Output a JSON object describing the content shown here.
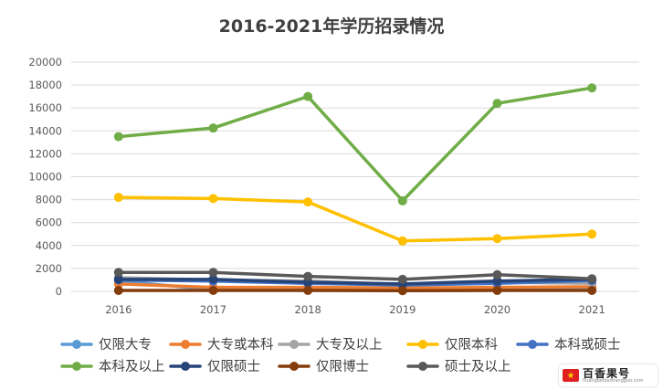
{
  "chart_data": {
    "type": "line",
    "title": "2016-2021年学历招录情况",
    "categories": [
      "2016",
      "2017",
      "2018",
      "2019",
      "2020",
      "2021"
    ],
    "ylim": [
      0,
      20000
    ],
    "yticks": [
      0,
      2000,
      4000,
      6000,
      8000,
      10000,
      12000,
      14000,
      16000,
      18000,
      20000
    ],
    "grid": true,
    "legend_position": "bottom",
    "series": [
      {
        "name": "仅限大专",
        "color": "#5b9bd5",
        "values": [
          900,
          150,
          250,
          200,
          250,
          300
        ]
      },
      {
        "name": "大专或本科",
        "color": "#ed7d31",
        "values": [
          650,
          350,
          350,
          300,
          350,
          400
        ]
      },
      {
        "name": "大专及以上",
        "color": "#a5a5a5",
        "values": [
          1200,
          1000,
          900,
          600,
          800,
          700
        ]
      },
      {
        "name": "仅限本科",
        "color": "#ffc000",
        "values": [
          8200,
          8100,
          7800,
          4400,
          4600,
          5000
        ]
      },
      {
        "name": "本科或硕士",
        "color": "#4472c4",
        "values": [
          1000,
          900,
          700,
          550,
          700,
          950
        ]
      },
      {
        "name": "本科及以上",
        "color": "#70ad47",
        "values": [
          13500,
          14250,
          17000,
          7900,
          16400,
          17750
        ]
      },
      {
        "name": "仅限硕士",
        "color": "#264478",
        "values": [
          1050,
          1050,
          800,
          650,
          900,
          1050
        ]
      },
      {
        "name": "仅限博士",
        "color": "#843c0c",
        "values": [
          80,
          80,
          80,
          60,
          80,
          80
        ]
      },
      {
        "name": "硕士及以上",
        "color": "#595959",
        "values": [
          1650,
          1650,
          1300,
          1050,
          1450,
          1100
        ]
      }
    ]
  },
  "watermark": {
    "name": "百香果号",
    "sub": "huangbeibaixiangguo.com"
  }
}
